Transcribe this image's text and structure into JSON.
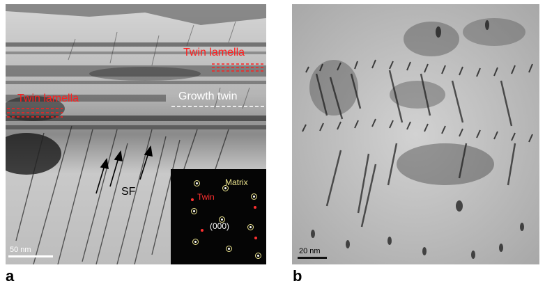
{
  "panel_a": {
    "letter": "a",
    "labels": {
      "twin_lamella_top": "Twin lamella",
      "twin_lamella_left": "Twin lamella",
      "growth_twin": "Growth twin",
      "stacking_fault": "SF"
    },
    "scale_bar": "50 nm",
    "inset": {
      "matrix_label": "Matrix",
      "twin_label": "Twin",
      "origin_label": "(000)"
    }
  },
  "panel_b": {
    "letter": "b",
    "scale_bar": "20 nm"
  },
  "colors": {
    "annotation_red": "#ff1e1e",
    "annotation_white": "#ffffff",
    "matrix_spot_yellow": "#f0e890",
    "twin_spot_red": "#ff3030"
  }
}
